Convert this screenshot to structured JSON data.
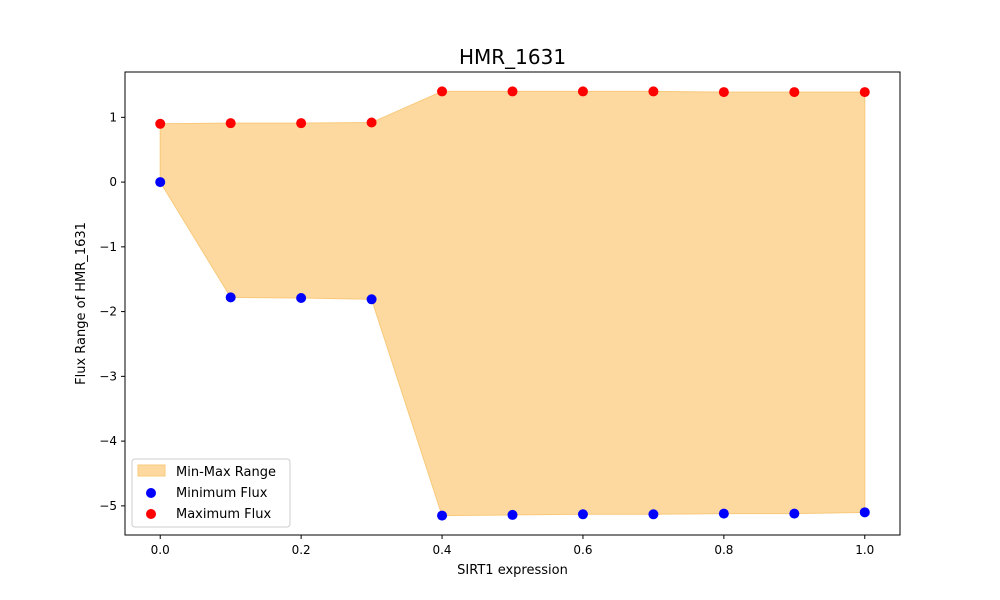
{
  "chart_data": {
    "type": "scatter",
    "title": "HMR_1631",
    "xlabel": "SIRT1 expression",
    "ylabel": "Flux Range of HMR_1631",
    "xlim": [
      -0.05,
      1.05
    ],
    "ylim": [
      -5.45,
      1.7
    ],
    "grid": false,
    "legend_placement": "lower-left",
    "x": [
      0.0,
      0.1,
      0.2,
      0.3,
      0.4,
      0.5,
      0.6,
      0.7,
      0.8,
      0.9,
      1.0
    ],
    "x_ticks": [
      0.0,
      0.2,
      0.4,
      0.6,
      0.8,
      1.0
    ],
    "x_tick_labels": [
      "0.0",
      "0.2",
      "0.4",
      "0.6",
      "0.8",
      "1.0"
    ],
    "y_ticks": [
      1,
      0,
      -1,
      -2,
      -3,
      -4,
      -5
    ],
    "y_tick_labels": [
      "1",
      "0",
      "−1",
      "−2",
      "−3",
      "−4",
      "−5"
    ],
    "range_fill": {
      "name": "Min-Max Range",
      "color": "#fdd9a0",
      "edge_color": "#f8c97a"
    },
    "series": [
      {
        "name": "Minimum Flux",
        "color": "#0000ff",
        "values": [
          0.0,
          -1.78,
          -1.79,
          -1.81,
          -5.15,
          -5.14,
          -5.13,
          -5.13,
          -5.12,
          -5.12,
          -5.1
        ]
      },
      {
        "name": "Maximum Flux",
        "color": "#ff0000",
        "values": [
          0.9,
          0.91,
          0.91,
          0.92,
          1.4,
          1.4,
          1.4,
          1.4,
          1.39,
          1.39,
          1.39
        ]
      }
    ]
  }
}
